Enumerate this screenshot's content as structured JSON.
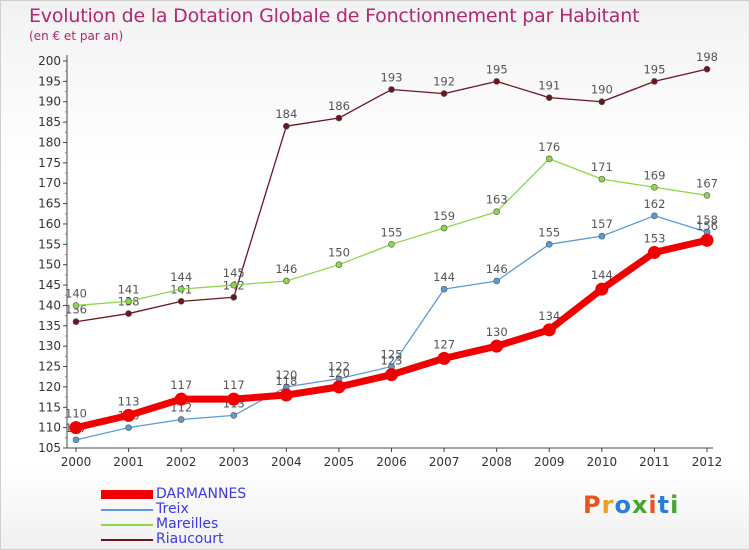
{
  "header": {
    "title": "Evolution de la Dotation Globale de Fonctionnement par Habitant",
    "subtitle": "(en € et par an)"
  },
  "logo": {
    "text": "Proxiti",
    "colors": [
      "#e8531f",
      "#f0a020",
      "#2a7fd4",
      "#43a82c",
      "#e8531f",
      "#2a7fd4",
      "#43a82c"
    ]
  },
  "chart_data": {
    "type": "line",
    "title": "Evolution de la Dotation Globale de Fonctionnement par Habitant",
    "subtitle": "(en € et par an)",
    "x": [
      "2000",
      "2001",
      "2002",
      "2003",
      "2004",
      "2005",
      "2006",
      "2007",
      "2008",
      "2009",
      "2010",
      "2011",
      "2012"
    ],
    "ylim": [
      105,
      200
    ],
    "yticks": [
      105,
      110,
      115,
      120,
      125,
      130,
      135,
      140,
      145,
      150,
      155,
      160,
      165,
      170,
      175,
      180,
      185,
      190,
      195,
      200
    ],
    "grid": false,
    "legend": "bottom-left",
    "series": [
      {
        "name": "Riaucourt",
        "color": "#6b1520",
        "values": [
          136,
          138,
          141,
          142,
          184,
          186,
          193,
          192,
          195,
          191,
          190,
          195,
          198
        ]
      },
      {
        "name": "Mareilles",
        "color": "#8dd84a",
        "values": [
          140,
          141,
          144,
          145,
          146,
          150,
          155,
          159,
          163,
          176,
          171,
          169,
          167
        ]
      },
      {
        "name": "Treix",
        "color": "#5b9bd5",
        "values": [
          107,
          110,
          112,
          113,
          120,
          122,
          125,
          144,
          146,
          155,
          157,
          162,
          158
        ]
      },
      {
        "name": "DARMANNES",
        "color": "#f00000",
        "values": [
          110,
          113,
          117,
          117,
          118,
          120,
          123,
          127,
          130,
          134,
          144,
          153,
          156
        ]
      }
    ]
  }
}
